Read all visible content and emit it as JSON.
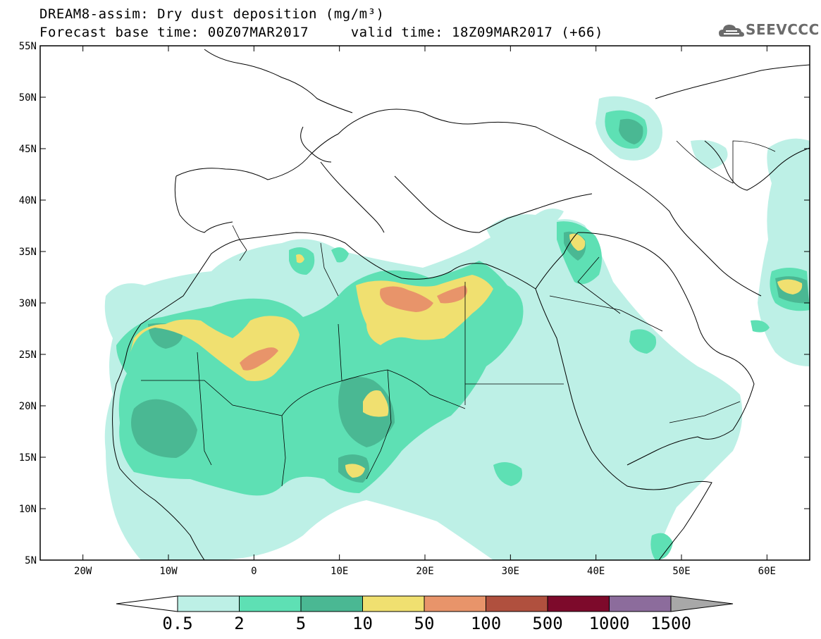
{
  "title": {
    "line1": "DREAM8-assim: Dry dust deposition (mg/m³)",
    "line2": "Forecast base time: 00Z07MAR2017     valid time: 18Z09MAR2017 (+66)"
  },
  "logo": {
    "text": "SEEVCCC"
  },
  "map": {
    "lon_range": [
      -25,
      65
    ],
    "lat_range": [
      5,
      55
    ],
    "lon_ticks": [
      "20W",
      "10W",
      "0",
      "10E",
      "20E",
      "30E",
      "40E",
      "50E",
      "60E"
    ],
    "lat_ticks": [
      "55N",
      "50N",
      "45N",
      "40N",
      "35N",
      "30N",
      "25N",
      "20N",
      "15N",
      "10N",
      "5N"
    ]
  },
  "colorbar": {
    "labels": [
      "0.5",
      "2",
      "5",
      "10",
      "50",
      "100",
      "500",
      "1000",
      "1500"
    ],
    "colors": [
      "#bdf0e6",
      "#5ee0b4",
      "#4ab893",
      "#f0e070",
      "#e8946a",
      "#b0503e",
      "#7d0a2b",
      "#8c6c9c"
    ],
    "under_color": "#ffffff",
    "over_color": "#a8a8a8"
  },
  "colors": {
    "level_1": "#bdf0e6",
    "level_2": "#5ee0b4",
    "level_3": "#4ab893",
    "level_4": "#f0e070",
    "level_5": "#e8946a",
    "border": "#000000"
  }
}
